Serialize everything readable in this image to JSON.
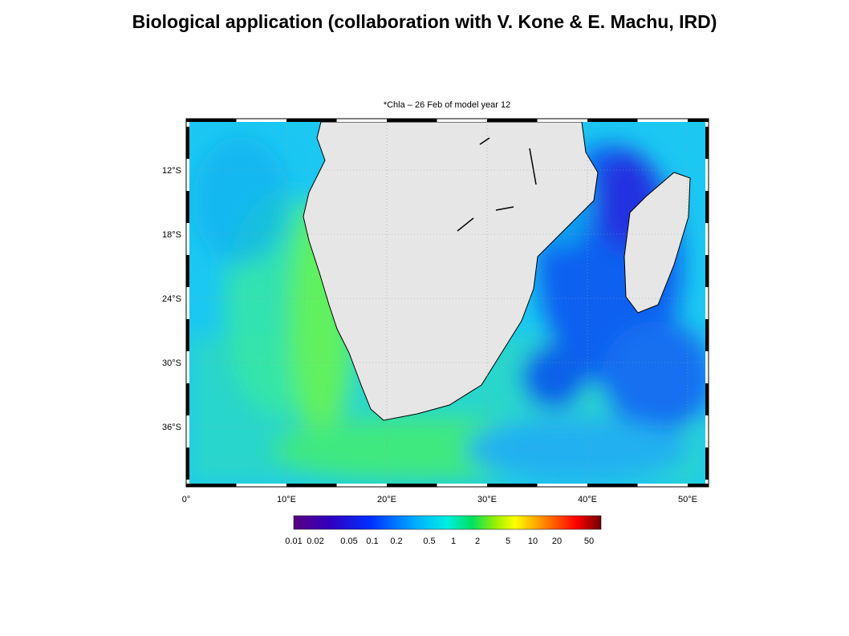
{
  "header": {
    "title": "Biological application (collaboration with V. Kone & E. Machu, IRD)"
  },
  "map": {
    "title": "*Chla – 26 Feb of model year 12",
    "lat_labels": [
      "12°S",
      "18°S",
      "24°S",
      "30°S",
      "36°S"
    ],
    "lon_labels": [
      "0°",
      "10°E",
      "20°E",
      "30°E",
      "40°E",
      "50°E"
    ]
  },
  "colorbar": {
    "labels": [
      "0.01",
      "0.02",
      "0.05",
      "0.1",
      "0.2",
      "0.5",
      "1",
      "2",
      "5",
      "10",
      "20",
      "50"
    ]
  }
}
